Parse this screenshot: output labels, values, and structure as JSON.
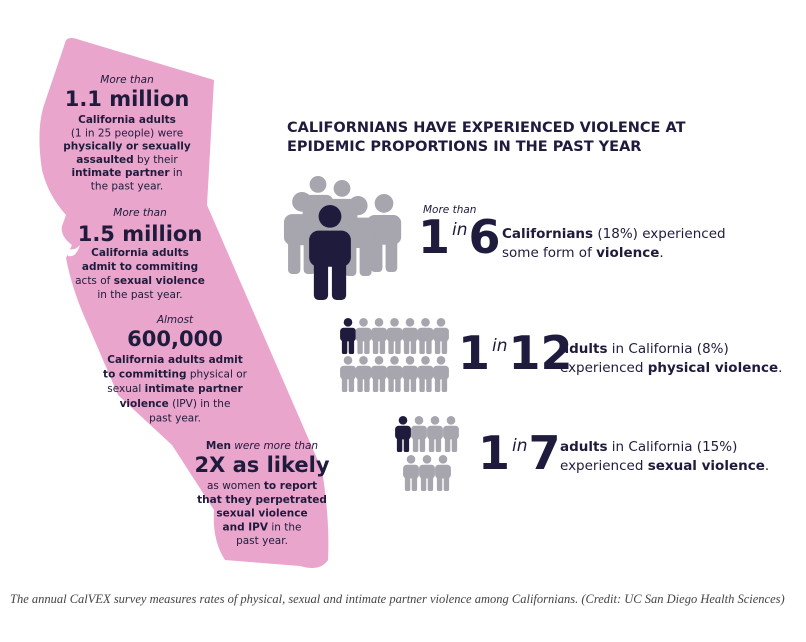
{
  "map_stats": [
    {
      "lead": [
        {
          "text": "More than",
          "bold": false
        }
      ],
      "headline": "1.1 million",
      "lines": [
        [
          {
            "text": "California adults",
            "bold": true
          }
        ],
        [
          {
            "text": "(1 in 25 people) were",
            "bold": false
          }
        ],
        [
          {
            "text": "physically or sexually",
            "bold": true
          }
        ],
        [
          {
            "text": "assaulted",
            "bold": true
          },
          {
            "text": " by their",
            "bold": false
          }
        ],
        [
          {
            "text": "intimate partner",
            "bold": true
          },
          {
            "text": " in",
            "bold": false
          }
        ],
        [
          {
            "text": "the past year.",
            "bold": false
          }
        ]
      ]
    },
    {
      "lead": [
        {
          "text": "More than",
          "bold": false
        }
      ],
      "headline": "1.5 million",
      "lines": [
        [
          {
            "text": "California adults",
            "bold": true
          }
        ],
        [
          {
            "text": "admit to commiting",
            "bold": true
          }
        ],
        [
          {
            "text": "acts of ",
            "bold": false
          },
          {
            "text": "sexual violence",
            "bold": true
          }
        ],
        [
          {
            "text": "in the past year.",
            "bold": false
          }
        ]
      ]
    },
    {
      "lead": [
        {
          "text": "Almost",
          "bold": false
        }
      ],
      "headline": "600,000",
      "lines": [
        [
          {
            "text": "California adults admit",
            "bold": true
          }
        ],
        [
          {
            "text": "to committing",
            "bold": true
          },
          {
            "text": " physical or",
            "bold": false
          }
        ],
        [
          {
            "text": "sexual ",
            "bold": false
          },
          {
            "text": "intimate partner",
            "bold": true
          }
        ],
        [
          {
            "text": "violence",
            "bold": true
          },
          {
            "text": " (IPV) in the",
            "bold": false
          }
        ],
        [
          {
            "text": "past year.",
            "bold": false
          }
        ]
      ]
    },
    {
      "lead": [
        {
          "text": "Men",
          "bold": true
        },
        {
          "text": " were more than",
          "bold": false
        }
      ],
      "headline": "2X as likely",
      "lines": [
        [
          {
            "text": "as women ",
            "bold": false
          },
          {
            "text": "to report",
            "bold": true
          }
        ],
        [
          {
            "text": "that they perpetrated",
            "bold": true
          }
        ],
        [
          {
            "text": "sexual violence",
            "bold": true
          }
        ],
        [
          {
            "text": "and IPV",
            "bold": true
          },
          {
            "text": " in the",
            "bold": false
          }
        ],
        [
          {
            "text": "past year.",
            "bold": false
          }
        ]
      ]
    }
  ],
  "title_lines": [
    "CALIFORNIANS HAVE EXPERIENCED VIOLENCE AT",
    "EPIDEMIC PROPORTIONS IN THE PAST YEAR"
  ],
  "ratios": [
    {
      "lead": "More than",
      "numerator": 1,
      "in": "in",
      "denominator": 6,
      "lines": [
        [
          {
            "text": "Californians",
            "bold": true
          },
          {
            "text": " (18%) experienced",
            "bold": false
          }
        ],
        [
          {
            "text": "some form of ",
            "bold": false
          },
          {
            "text": "violence",
            "bold": true
          },
          {
            "text": ".",
            "bold": false
          }
        ]
      ]
    },
    {
      "numerator": 1,
      "in": "in",
      "denominator": 12,
      "lines": [
        [
          {
            "text": "adults",
            "bold": true
          },
          {
            "text": " in California (8%)",
            "bold": false
          }
        ],
        [
          {
            "text": "experienced ",
            "bold": false
          },
          {
            "text": "physical violence",
            "bold": true
          },
          {
            "text": ".",
            "bold": false
          }
        ]
      ]
    },
    {
      "numerator": 1,
      "in": "in",
      "denominator": 7,
      "lines": [
        [
          {
            "text": "adults",
            "bold": true
          },
          {
            "text": " in California (15%)",
            "bold": false
          }
        ],
        [
          {
            "text": "experienced ",
            "bold": false
          },
          {
            "text": "sexual violence",
            "bold": true
          },
          {
            "text": ".",
            "bold": false
          }
        ]
      ]
    }
  ],
  "caption": "The annual CalVEX survey measures rates of physical, sexual and intimate partner violence among Californians. (Credit: UC San Diego Health Sciences)"
}
